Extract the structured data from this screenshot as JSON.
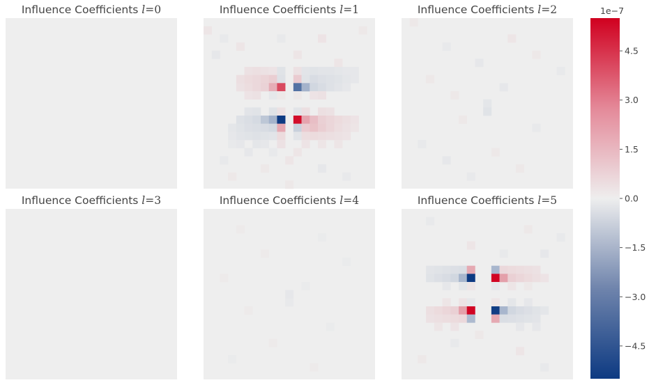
{
  "chart_data": {
    "type": "heatmap",
    "grid": false,
    "legend": "none",
    "colormap": {
      "min_color": "#0d3a82",
      "mid_color": "#eeeeee",
      "max_color": "#d0001f",
      "vmin": -5.5e-07,
      "vmax": 5.5e-07
    },
    "colorbar": {
      "position": "right",
      "exponent_label": "1e−7",
      "ticks": [
        {
          "value": 4.5e-07,
          "label": "4.5"
        },
        {
          "value": 3e-07,
          "label": "3.0"
        },
        {
          "value": 1.5e-07,
          "label": "1.5"
        },
        {
          "value": 0.0,
          "label": "0.0"
        },
        {
          "value": -1.5e-07,
          "label": "−1.5"
        },
        {
          "value": -3e-07,
          "label": "−3.0"
        },
        {
          "value": -4.5e-07,
          "label": "−4.5"
        }
      ]
    },
    "panels": [
      {
        "title_text": "Influence Coefficients ",
        "title_math": "l",
        "title_eq": "=",
        "title_num": "0",
        "rows": 21,
        "cols": 21,
        "cells": []
      },
      {
        "title_text": "Influence Coefficients ",
        "title_math": "l",
        "title_eq": "=",
        "title_num": "1",
        "rows": 21,
        "cols": 21,
        "cells": [
          [
            1,
            0,
            0.2
          ],
          [
            2,
            2,
            -0.15
          ],
          [
            4,
            1,
            -0.2
          ],
          [
            3,
            4,
            0.2
          ],
          [
            2,
            9,
            -0.15
          ],
          [
            4,
            11,
            0.2
          ],
          [
            2,
            14,
            0.25
          ],
          [
            6,
            18,
            -0.2
          ],
          [
            1,
            19,
            0.15
          ],
          [
            5,
            16,
            0.2
          ],
          [
            6,
            5,
            0.3
          ],
          [
            6,
            6,
            0.35
          ],
          [
            6,
            7,
            0.3
          ],
          [
            6,
            8,
            0.25
          ],
          [
            6,
            9,
            -0.35
          ],
          [
            6,
            11,
            0.3
          ],
          [
            6,
            12,
            -0.3
          ],
          [
            6,
            13,
            -0.35
          ],
          [
            6,
            14,
            -0.3
          ],
          [
            6,
            15,
            -0.3
          ],
          [
            6,
            16,
            -0.25
          ],
          [
            6,
            17,
            -0.2
          ],
          [
            7,
            4,
            0.35
          ],
          [
            7,
            5,
            0.45
          ],
          [
            7,
            6,
            0.5
          ],
          [
            7,
            7,
            0.6
          ],
          [
            7,
            8,
            0.75
          ],
          [
            7,
            9,
            -0.4
          ],
          [
            7,
            11,
            0.8
          ],
          [
            7,
            12,
            -0.35
          ],
          [
            7,
            13,
            -0.55
          ],
          [
            7,
            14,
            -0.45
          ],
          [
            7,
            15,
            -0.4
          ],
          [
            7,
            16,
            -0.35
          ],
          [
            7,
            17,
            -0.25
          ],
          [
            7,
            18,
            -0.2
          ],
          [
            8,
            4,
            0.3
          ],
          [
            8,
            5,
            0.4
          ],
          [
            8,
            6,
            0.5
          ],
          [
            8,
            7,
            0.65
          ],
          [
            8,
            8,
            1.5
          ],
          [
            8,
            9,
            3.8
          ],
          [
            8,
            11,
            -3.8
          ],
          [
            8,
            12,
            -1.8
          ],
          [
            8,
            13,
            -0.7
          ],
          [
            8,
            14,
            -0.55
          ],
          [
            8,
            15,
            -0.4
          ],
          [
            8,
            16,
            -0.3
          ],
          [
            8,
            17,
            -0.2
          ],
          [
            9,
            5,
            0.25
          ],
          [
            9,
            6,
            0.3
          ],
          [
            9,
            8,
            -0.2
          ],
          [
            9,
            9,
            0.15
          ],
          [
            9,
            11,
            0.15
          ],
          [
            9,
            13,
            0.25
          ],
          [
            9,
            14,
            0.3
          ],
          [
            11,
            5,
            -0.3
          ],
          [
            11,
            6,
            -0.35
          ],
          [
            11,
            8,
            -0.35
          ],
          [
            11,
            9,
            0.3
          ],
          [
            11,
            11,
            -0.3
          ],
          [
            11,
            12,
            0.35
          ],
          [
            11,
            14,
            0.35
          ],
          [
            11,
            15,
            0.3
          ],
          [
            12,
            4,
            -0.4
          ],
          [
            12,
            5,
            -0.5
          ],
          [
            12,
            6,
            -0.6
          ],
          [
            12,
            7,
            -1.2
          ],
          [
            12,
            8,
            -1.8
          ],
          [
            12,
            9,
            -5.5
          ],
          [
            12,
            11,
            5.2
          ],
          [
            12,
            12,
            1.7
          ],
          [
            12,
            13,
            1.1
          ],
          [
            12,
            14,
            0.7
          ],
          [
            12,
            15,
            0.55
          ],
          [
            12,
            16,
            0.45
          ],
          [
            12,
            17,
            0.35
          ],
          [
            12,
            18,
            0.25
          ],
          [
            13,
            3,
            -0.25
          ],
          [
            13,
            4,
            -0.35
          ],
          [
            13,
            5,
            -0.45
          ],
          [
            13,
            6,
            -0.5
          ],
          [
            13,
            7,
            -0.55
          ],
          [
            13,
            8,
            -0.65
          ],
          [
            13,
            9,
            1.6
          ],
          [
            13,
            11,
            -0.9
          ],
          [
            13,
            12,
            0.8
          ],
          [
            13,
            13,
            1.0
          ],
          [
            13,
            14,
            0.75
          ],
          [
            13,
            15,
            0.55
          ],
          [
            13,
            16,
            0.4
          ],
          [
            13,
            17,
            0.3
          ],
          [
            13,
            18,
            0.2
          ],
          [
            14,
            3,
            -0.2
          ],
          [
            14,
            4,
            -0.3
          ],
          [
            14,
            5,
            -0.35
          ],
          [
            14,
            6,
            -0.4
          ],
          [
            14,
            7,
            -0.35
          ],
          [
            14,
            8,
            -0.3
          ],
          [
            14,
            9,
            0.45
          ],
          [
            14,
            11,
            -0.3
          ],
          [
            14,
            12,
            0.4
          ],
          [
            14,
            13,
            0.45
          ],
          [
            14,
            14,
            0.4
          ],
          [
            14,
            15,
            0.35
          ],
          [
            14,
            16,
            0.3
          ],
          [
            14,
            17,
            0.25
          ],
          [
            15,
            3,
            -0.15
          ],
          [
            15,
            4,
            -0.2
          ],
          [
            15,
            6,
            -0.25
          ],
          [
            15,
            7,
            -0.2
          ],
          [
            15,
            9,
            0.3
          ],
          [
            15,
            12,
            0.25
          ],
          [
            15,
            14,
            0.2
          ],
          [
            15,
            16,
            0.2
          ],
          [
            16,
            5,
            -0.2
          ],
          [
            16,
            8,
            -0.15
          ],
          [
            16,
            11,
            0.2
          ],
          [
            17,
            2,
            -0.15
          ],
          [
            17,
            10,
            0.2
          ],
          [
            18,
            7,
            0.15
          ],
          [
            18,
            14,
            -0.2
          ],
          [
            19,
            3,
            0.15
          ],
          [
            19,
            17,
            -0.15
          ],
          [
            20,
            10,
            0.15
          ]
        ]
      },
      {
        "title_text": "Influence Coefficients ",
        "title_math": "l",
        "title_eq": "=",
        "title_num": "2",
        "rows": 21,
        "cols": 21,
        "cells": [
          [
            0,
            1,
            0.15
          ],
          [
            2,
            13,
            0.2
          ],
          [
            3,
            5,
            -0.15
          ],
          [
            4,
            16,
            0.15
          ],
          [
            5,
            9,
            -0.2
          ],
          [
            6,
            19,
            -0.15
          ],
          [
            7,
            3,
            0.15
          ],
          [
            8,
            12,
            -0.2
          ],
          [
            9,
            6,
            0.15
          ],
          [
            10,
            10,
            -0.25
          ],
          [
            11,
            10,
            -0.35
          ],
          [
            12,
            7,
            0.15
          ],
          [
            13,
            16,
            -0.15
          ],
          [
            15,
            2,
            -0.15
          ],
          [
            16,
            11,
            0.15
          ],
          [
            17,
            5,
            -0.2
          ],
          [
            18,
            14,
            0.15
          ],
          [
            19,
            8,
            -0.15
          ]
        ]
      },
      {
        "title_text": "Influence Coefficients ",
        "title_math": "l",
        "title_eq": "=",
        "title_num": "3",
        "rows": 21,
        "cols": 21,
        "cells": []
      },
      {
        "title_text": "Influence Coefficients ",
        "title_math": "l",
        "title_eq": "=",
        "title_num": "4",
        "rows": 21,
        "cols": 21,
        "cells": [
          [
            2,
            4,
            0.1
          ],
          [
            3,
            14,
            -0.1
          ],
          [
            5,
            7,
            0.1
          ],
          [
            6,
            17,
            -0.1
          ],
          [
            8,
            2,
            0.1
          ],
          [
            9,
            12,
            -0.1
          ],
          [
            10,
            10,
            -0.2
          ],
          [
            11,
            10,
            -0.15
          ],
          [
            12,
            5,
            0.1
          ],
          [
            14,
            15,
            -0.1
          ],
          [
            16,
            8,
            0.1
          ],
          [
            18,
            3,
            -0.1
          ],
          [
            19,
            13,
            0.1
          ]
        ]
      },
      {
        "title_text": "Influence Coefficients ",
        "title_math": "l",
        "title_eq": "=",
        "title_num": "5",
        "rows": 21,
        "cols": 21,
        "cells": [
          [
            1,
            3,
            -0.15
          ],
          [
            2,
            15,
            0.15
          ],
          [
            4,
            8,
            0.2
          ],
          [
            3,
            19,
            -0.15
          ],
          [
            5,
            12,
            -0.15
          ],
          [
            5,
            17,
            -0.2
          ],
          [
            7,
            3,
            -0.3
          ],
          [
            7,
            4,
            -0.35
          ],
          [
            7,
            5,
            -0.4
          ],
          [
            7,
            6,
            -0.45
          ],
          [
            7,
            7,
            -0.5
          ],
          [
            7,
            8,
            1.6
          ],
          [
            7,
            11,
            -1.7
          ],
          [
            7,
            12,
            0.5
          ],
          [
            7,
            13,
            0.45
          ],
          [
            7,
            14,
            0.4
          ],
          [
            7,
            15,
            0.35
          ],
          [
            7,
            16,
            0.3
          ],
          [
            8,
            3,
            -0.35
          ],
          [
            8,
            4,
            -0.45
          ],
          [
            8,
            5,
            -0.55
          ],
          [
            8,
            6,
            -0.7
          ],
          [
            8,
            7,
            -1.7
          ],
          [
            8,
            8,
            -5.5
          ],
          [
            8,
            11,
            5.4
          ],
          [
            8,
            12,
            1.8
          ],
          [
            8,
            13,
            0.7
          ],
          [
            8,
            14,
            0.55
          ],
          [
            8,
            15,
            0.45
          ],
          [
            8,
            16,
            0.35
          ],
          [
            8,
            17,
            0.25
          ],
          [
            9,
            5,
            -0.2
          ],
          [
            9,
            7,
            -0.25
          ],
          [
            9,
            8,
            0.2
          ],
          [
            9,
            11,
            -0.2
          ],
          [
            9,
            13,
            0.2
          ],
          [
            9,
            15,
            0.15
          ],
          [
            11,
            5,
            0.2
          ],
          [
            11,
            7,
            0.25
          ],
          [
            11,
            8,
            -0.2
          ],
          [
            11,
            11,
            0.2
          ],
          [
            11,
            13,
            -0.25
          ],
          [
            11,
            15,
            -0.2
          ],
          [
            12,
            3,
            0.35
          ],
          [
            12,
            4,
            0.45
          ],
          [
            12,
            5,
            0.55
          ],
          [
            12,
            6,
            0.7
          ],
          [
            12,
            7,
            1.8
          ],
          [
            12,
            8,
            5.4
          ],
          [
            12,
            11,
            -5.4
          ],
          [
            12,
            12,
            -1.7
          ],
          [
            12,
            13,
            -0.7
          ],
          [
            12,
            14,
            -0.55
          ],
          [
            12,
            15,
            -0.45
          ],
          [
            12,
            16,
            -0.35
          ],
          [
            12,
            17,
            -0.25
          ],
          [
            13,
            3,
            0.3
          ],
          [
            13,
            4,
            0.35
          ],
          [
            13,
            5,
            0.4
          ],
          [
            13,
            6,
            0.45
          ],
          [
            13,
            7,
            0.5
          ],
          [
            13,
            8,
            -1.6
          ],
          [
            13,
            11,
            1.6
          ],
          [
            13,
            12,
            -0.5
          ],
          [
            13,
            13,
            -0.45
          ],
          [
            13,
            14,
            -0.4
          ],
          [
            13,
            15,
            -0.35
          ],
          [
            13,
            16,
            -0.3
          ],
          [
            14,
            4,
            0.2
          ],
          [
            14,
            6,
            0.25
          ],
          [
            14,
            14,
            -0.2
          ],
          [
            14,
            16,
            -0.2
          ],
          [
            15,
            9,
            0.15
          ],
          [
            16,
            6,
            -0.15
          ],
          [
            17,
            14,
            0.2
          ],
          [
            18,
            2,
            0.15
          ],
          [
            19,
            17,
            -0.15
          ]
        ]
      }
    ]
  }
}
